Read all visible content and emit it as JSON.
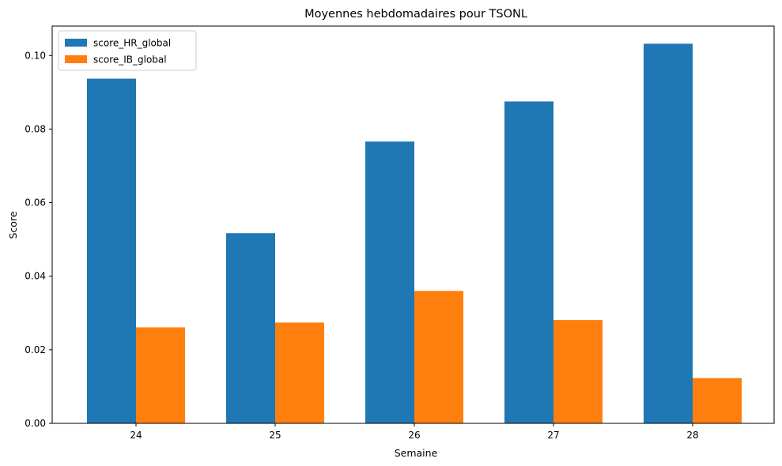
{
  "chart_data": {
    "type": "bar",
    "title": "Moyennes hebdomadaires pour TSONL",
    "xlabel": "Semaine",
    "ylabel": "Score",
    "categories": [
      "24",
      "25",
      "26",
      "27",
      "28"
    ],
    "series": [
      {
        "name": "score_HR_global",
        "color": "#1f77b4",
        "values": [
          0.0937,
          0.0517,
          0.0766,
          0.0875,
          0.1032
        ]
      },
      {
        "name": "score_IB_global",
        "color": "#ff7f0e",
        "values": [
          0.0261,
          0.0274,
          0.036,
          0.0281,
          0.0123
        ]
      }
    ],
    "ylim": [
      0,
      0.108
    ],
    "yticks": [
      0.0,
      0.02,
      0.04,
      0.06,
      0.08,
      0.1
    ],
    "ytick_labels": [
      "0.00",
      "0.02",
      "0.04",
      "0.06",
      "0.08",
      "0.10"
    ],
    "legend_position": "top-left",
    "grid": false
  }
}
